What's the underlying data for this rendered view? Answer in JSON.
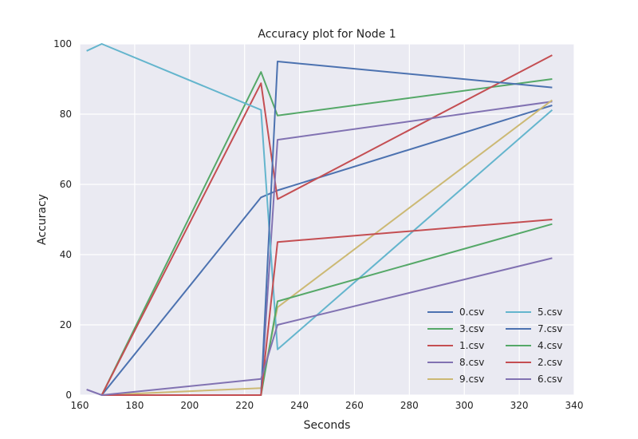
{
  "chart_data": {
    "type": "line",
    "title": "Accuracy plot for Node 1",
    "xlabel": "Seconds",
    "ylabel": "Accuracy",
    "xlim": [
      160,
      340
    ],
    "ylim": [
      0,
      100
    ],
    "xticks": [
      160,
      180,
      200,
      220,
      240,
      260,
      280,
      300,
      320,
      340
    ],
    "yticks": [
      0,
      20,
      40,
      60,
      80,
      100
    ],
    "grid": true,
    "legend_position": "bottom-right",
    "legend_columns": 2,
    "background_color": "#eaeaf2",
    "series": [
      {
        "name": "0.csv",
        "color": "#4c72b0",
        "x": [
          168,
          226,
          232,
          332
        ],
        "y": [
          0,
          56.3,
          58.3,
          82.5
        ]
      },
      {
        "name": "3.csv",
        "color": "#55a868",
        "x": [
          168,
          226,
          232,
          332
        ],
        "y": [
          0,
          92,
          79.6,
          90
        ]
      },
      {
        "name": "1.csv",
        "color": "#c44e52",
        "x": [
          168,
          226,
          232,
          332
        ],
        "y": [
          0,
          88.8,
          55.8,
          96.8
        ]
      },
      {
        "name": "8.csv",
        "color": "#8172b2",
        "x": [
          168,
          226,
          232,
          332
        ],
        "y": [
          0,
          0,
          72.7,
          83.6
        ]
      },
      {
        "name": "9.csv",
        "color": "#ccb974",
        "x": [
          168,
          226,
          232,
          332
        ],
        "y": [
          0,
          2,
          25,
          84
        ]
      },
      {
        "name": "5.csv",
        "color": "#64b5cd",
        "x": [
          162.5,
          168,
          226,
          232,
          332
        ],
        "y": [
          98,
          100,
          81.2,
          13,
          81.2
        ]
      },
      {
        "name": "7.csv",
        "color": "#4c72b0",
        "x": [
          168,
          226,
          232,
          332
        ],
        "y": [
          0,
          0,
          95,
          87.6
        ]
      },
      {
        "name": "4.csv",
        "color": "#55a868",
        "x": [
          168,
          226,
          232,
          332
        ],
        "y": [
          0,
          0,
          26.7,
          48.7
        ]
      },
      {
        "name": "2.csv",
        "color": "#c44e52",
        "x": [
          168,
          226,
          232,
          332
        ],
        "y": [
          0,
          0,
          43.6,
          50
        ]
      },
      {
        "name": "6.csv",
        "color": "#8172b2",
        "x": [
          162.5,
          168,
          226,
          232,
          332
        ],
        "y": [
          1.6,
          0,
          4.6,
          20,
          39
        ]
      }
    ]
  }
}
